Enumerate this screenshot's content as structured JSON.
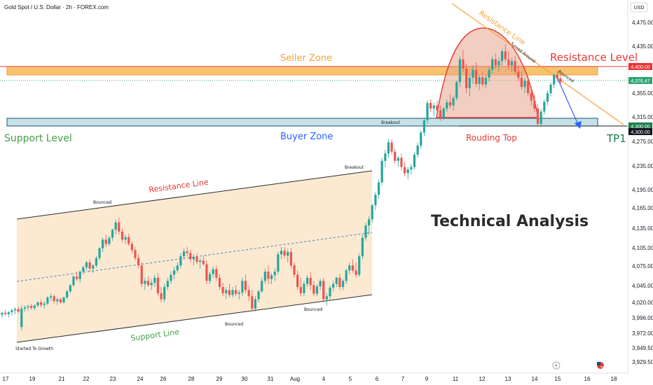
{
  "header": {
    "title": "Gold Spot / U.S. Dollar · 2h · FOREX.com",
    "currency_button": "USD"
  },
  "chart_data": {
    "type": "candlestick",
    "title": "Gold Spot / U.S. Dollar · 2h · FOREX.com",
    "y_ticks": [
      "4,475.00",
      "4,435.00",
      "4,355.00",
      "4,315.00",
      "4,275.00",
      "4,235.00",
      "4,195.00",
      "4,165.00",
      "4,135.00",
      "4,105.00",
      "4,075.00",
      "4,045.00",
      "4,020.00",
      "3,996.00",
      "3,972.00",
      "3,949.50",
      "3,929.50"
    ],
    "x_ticks": [
      "17",
      "19",
      "21",
      "22",
      "23",
      "24",
      "26",
      "28",
      "29",
      "30",
      "31",
      "Aug",
      "4",
      "5",
      "6",
      "7",
      "9",
      "11",
      "12",
      "13",
      "14",
      "15",
      "16",
      "18",
      "19"
    ],
    "price_labels": [
      {
        "text": "4,400.00",
        "color": "#ef3131"
      },
      {
        "text": "4,376.47",
        "color": "#2aa672"
      },
      {
        "text": "4,300.00",
        "color": "#1a7d4a"
      },
      {
        "text": "4,300.00",
        "color": "#131722"
      }
    ],
    "candles": [
      [
        4000,
        4005,
        3995,
        4003
      ],
      [
        4003,
        4008,
        3998,
        4001
      ],
      [
        4001,
        4006,
        3996,
        4004
      ],
      [
        4004,
        4010,
        3999,
        4007
      ],
      [
        4007,
        4012,
        4001,
        4009
      ],
      [
        4009,
        4013,
        4003,
        4005
      ],
      [
        3980,
        4015,
        3975,
        4010
      ],
      [
        4010,
        4015,
        4005,
        4012
      ],
      [
        4012,
        4016,
        4007,
        4014
      ],
      [
        4014,
        4018,
        4008,
        4011
      ],
      [
        4011,
        4017,
        4007,
        4015
      ],
      [
        4015,
        4022,
        4012,
        4020
      ],
      [
        4020,
        4025,
        4012,
        4016
      ],
      [
        4016,
        4022,
        4010,
        4018
      ],
      [
        4018,
        4030,
        4015,
        4028
      ],
      [
        4028,
        4035,
        4022,
        4030
      ],
      [
        4030,
        4033,
        4018,
        4022
      ],
      [
        4022,
        4028,
        4016,
        4025
      ],
      [
        4025,
        4028,
        4018,
        4020
      ],
      [
        4020,
        4030,
        4018,
        4028
      ],
      [
        4028,
        4040,
        4025,
        4038
      ],
      [
        4038,
        4050,
        4035,
        4048
      ],
      [
        4048,
        4065,
        4045,
        4062
      ],
      [
        4062,
        4070,
        4055,
        4058
      ],
      [
        4058,
        4072,
        4052,
        4070
      ],
      [
        4070,
        4080,
        4065,
        4077
      ],
      [
        4077,
        4088,
        4072,
        4085
      ],
      [
        4085,
        4090,
        4070,
        4075
      ],
      [
        4075,
        4082,
        4068,
        4080
      ],
      [
        4080,
        4095,
        4076,
        4092
      ],
      [
        4092,
        4110,
        4088,
        4108
      ],
      [
        4108,
        4125,
        4102,
        4122
      ],
      [
        4122,
        4130,
        4110,
        4115
      ],
      [
        4115,
        4128,
        4112,
        4125
      ],
      [
        4125,
        4140,
        4120,
        4138
      ],
      [
        4138,
        4155,
        4130,
        4150
      ],
      [
        4150,
        4158,
        4130,
        4135
      ],
      [
        4135,
        4140,
        4118,
        4122
      ],
      [
        4122,
        4130,
        4115,
        4126
      ],
      [
        4126,
        4132,
        4112,
        4115
      ],
      [
        4115,
        4120,
        4100,
        4105
      ],
      [
        4105,
        4110,
        4088,
        4092
      ],
      [
        4092,
        4098,
        4075,
        4080
      ],
      [
        4080,
        4085,
        4045,
        4050
      ],
      [
        4050,
        4060,
        4040,
        4055
      ],
      [
        4055,
        4062,
        4045,
        4048
      ],
      [
        4048,
        4058,
        4040,
        4052
      ],
      [
        4052,
        4065,
        4045,
        4060
      ],
      [
        4060,
        4068,
        4030,
        4035
      ],
      [
        4035,
        4045,
        4020,
        4025
      ],
      [
        4025,
        4050,
        4020,
        4045
      ],
      [
        4045,
        4060,
        4040,
        4055
      ],
      [
        4055,
        4070,
        4050,
        4065
      ],
      [
        4065,
        4078,
        4058,
        4072
      ],
      [
        4072,
        4085,
        4068,
        4080
      ],
      [
        4080,
        4100,
        4075,
        4095
      ],
      [
        4095,
        4108,
        4090,
        4103
      ],
      [
        4103,
        4110,
        4095,
        4100
      ],
      [
        4100,
        4106,
        4085,
        4090
      ],
      [
        4090,
        4098,
        4080,
        4094
      ],
      [
        4094,
        4100,
        4082,
        4086
      ],
      [
        4086,
        4092,
        4075,
        4088
      ],
      [
        4088,
        4095,
        4080,
        4082
      ],
      [
        4082,
        4088,
        4050,
        4055
      ],
      [
        4055,
        4070,
        4050,
        4066
      ],
      [
        4066,
        4078,
        4060,
        4074
      ],
      [
        4074,
        4080,
        4055,
        4060
      ],
      [
        4060,
        4066,
        4040,
        4045
      ],
      [
        4045,
        4052,
        4030,
        4035
      ],
      [
        4035,
        4045,
        4025,
        4040
      ],
      [
        4040,
        4050,
        4028,
        4032
      ],
      [
        4032,
        4045,
        4028,
        4040
      ],
      [
        4040,
        4048,
        4030,
        4034
      ],
      [
        4034,
        4040,
        4025,
        4036
      ],
      [
        4036,
        4060,
        4030,
        4055
      ],
      [
        4055,
        4065,
        4035,
        4040
      ],
      [
        4040,
        4048,
        4022,
        4030
      ],
      [
        4030,
        4040,
        4005,
        4010
      ],
      [
        4010,
        4030,
        4005,
        4025
      ],
      [
        4025,
        4040,
        4020,
        4038
      ],
      [
        4038,
        4060,
        4035,
        4055
      ],
      [
        4055,
        4075,
        4050,
        4070
      ],
      [
        4070,
        4080,
        4050,
        4058
      ],
      [
        4058,
        4068,
        4050,
        4064
      ],
      [
        4064,
        4075,
        4055,
        4070
      ],
      [
        4070,
        4102,
        4065,
        4098
      ],
      [
        4098,
        4110,
        4090,
        4104
      ],
      [
        4104,
        4110,
        4092,
        4096
      ],
      [
        4096,
        4106,
        4085,
        4102
      ],
      [
        4102,
        4108,
        4075,
        4080
      ],
      [
        4080,
        4085,
        4060,
        4065
      ],
      [
        4065,
        4072,
        4040,
        4045
      ],
      [
        4045,
        4060,
        4030,
        4035
      ],
      [
        4035,
        4055,
        4030,
        4050
      ],
      [
        4050,
        4065,
        4045,
        4060
      ],
      [
        4060,
        4070,
        4040,
        4048
      ],
      [
        4048,
        4055,
        4030,
        4034
      ],
      [
        4034,
        4050,
        4030,
        4046
      ],
      [
        4046,
        4058,
        4040,
        4055
      ],
      [
        4055,
        4060,
        4020,
        4025
      ],
      [
        4025,
        4035,
        4015,
        4030
      ],
      [
        4030,
        4048,
        4025,
        4044
      ],
      [
        4044,
        4055,
        4038,
        4050
      ],
      [
        4050,
        4062,
        4045,
        4060
      ],
      [
        4060,
        4066,
        4040,
        4045
      ],
      [
        4045,
        4058,
        4040,
        4055
      ],
      [
        4055,
        4075,
        4050,
        4072
      ],
      [
        4072,
        4085,
        4065,
        4080
      ],
      [
        4080,
        4090,
        4068,
        4072
      ],
      [
        4072,
        4085,
        4060,
        4065
      ],
      [
        4065,
        4100,
        4062,
        4095
      ],
      [
        4095,
        4130,
        4090,
        4125
      ],
      [
        4125,
        4150,
        4120,
        4145
      ],
      [
        4145,
        4160,
        4130,
        4155
      ],
      [
        4155,
        4180,
        4150,
        4178
      ],
      [
        4178,
        4200,
        4170,
        4195
      ],
      [
        4195,
        4220,
        4188,
        4215
      ],
      [
        4215,
        4255,
        4210,
        4250
      ],
      [
        4250,
        4268,
        4240,
        4262
      ],
      [
        4262,
        4285,
        4255,
        4280
      ],
      [
        4280,
        4285,
        4260,
        4265
      ],
      [
        4265,
        4270,
        4245,
        4250
      ],
      [
        4250,
        4258,
        4240,
        4255
      ],
      [
        4255,
        4262,
        4235,
        4240
      ],
      [
        4240,
        4248,
        4225,
        4230
      ],
      [
        4230,
        4240,
        4220,
        4236
      ],
      [
        4236,
        4245,
        4228,
        4240
      ],
      [
        4240,
        4265,
        4235,
        4260
      ],
      [
        4260,
        4280,
        4255,
        4275
      ],
      [
        4275,
        4300,
        4270,
        4296
      ],
      [
        4296,
        4320,
        4290,
        4316
      ],
      [
        4316,
        4348,
        4310,
        4344
      ],
      [
        4344,
        4350,
        4330,
        4335
      ],
      [
        4335,
        4345,
        4322,
        4340
      ],
      [
        4340,
        4348,
        4328,
        4332
      ],
      [
        4332,
        4340,
        4315,
        4320
      ],
      [
        4320,
        4338,
        4316,
        4335
      ],
      [
        4335,
        4350,
        4330,
        4345
      ],
      [
        4345,
        4358,
        4335,
        4340
      ],
      [
        4340,
        4356,
        4332,
        4352
      ],
      [
        4352,
        4380,
        4348,
        4378
      ],
      [
        4378,
        4420,
        4370,
        4415
      ],
      [
        4415,
        4430,
        4395,
        4400
      ],
      [
        4400,
        4408,
        4360,
        4368
      ],
      [
        4368,
        4390,
        4355,
        4385
      ],
      [
        4385,
        4405,
        4375,
        4398
      ],
      [
        4398,
        4410,
        4370,
        4375
      ],
      [
        4375,
        4390,
        4365,
        4386
      ],
      [
        4386,
        4395,
        4370,
        4374
      ],
      [
        4374,
        4390,
        4368,
        4385
      ],
      [
        4385,
        4402,
        4378,
        4398
      ],
      [
        4398,
        4420,
        4392,
        4415
      ],
      [
        4415,
        4425,
        4400,
        4405
      ],
      [
        4405,
        4418,
        4395,
        4412
      ],
      [
        4412,
        4432,
        4405,
        4428
      ],
      [
        4428,
        4440,
        4410,
        4415
      ],
      [
        4415,
        4428,
        4398,
        4405
      ],
      [
        4405,
        4418,
        4395,
        4412
      ],
      [
        4412,
        4420,
        4390,
        4395
      ],
      [
        4395,
        4405,
        4380,
        4385
      ],
      [
        4385,
        4395,
        4365,
        4370
      ],
      [
        4370,
        4385,
        4360,
        4380
      ],
      [
        4380,
        4388,
        4355,
        4360
      ],
      [
        4360,
        4370,
        4340,
        4348
      ],
      [
        4348,
        4358,
        4330,
        4335
      ],
      [
        4335,
        4342,
        4305,
        4310
      ],
      [
        4310,
        4335,
        4305,
        4330
      ],
      [
        4330,
        4350,
        4325,
        4346
      ],
      [
        4346,
        4365,
        4340,
        4360
      ],
      [
        4360,
        4378,
        4355,
        4374
      ],
      [
        4374,
        4392,
        4368,
        4390
      ],
      [
        4390,
        4396,
        4378,
        4384
      ],
      [
        4384,
        4390,
        4372,
        4378
      ]
    ]
  },
  "annotations": {
    "seller_zone": "Seller Zone",
    "buyer_zone": "Buyer Zone",
    "support_level": "Support Level",
    "resistance_level": "Resistance Level",
    "rounding_top": "Rouding Top",
    "tp1": "TP1",
    "technical_analysis": "Technical Analysis",
    "resistance_line_channel": "Resistance Line",
    "support_line_channel": "Support Line",
    "resistance_line_trend": "Resistance Line",
    "turned_around": "Turned Around",
    "bounced_right": "Bounced",
    "bounced_top": "Bounced",
    "bounced_bottom_1": "Bounced",
    "bounced_bottom_2": "Bounced",
    "breakout_1": "Breakout",
    "breakout_2": "Breakout",
    "started_to_growth": "Started To Growth"
  },
  "colors": {
    "up": "#26a69a",
    "down": "#ef5350",
    "seller_zone_fill": "#f7b955",
    "seller_zone_border": "#f39a2b",
    "buyer_zone_fill": "#b7dbe0",
    "buyer_zone_border": "#1f4f7a",
    "channel_fill": "#f8dcb8",
    "red_line": "#e53935",
    "blue_text": "#2962ff",
    "green_text": "#43a047",
    "orange_text": "#f4a23a",
    "resistance_text": "#e53935",
    "trend_line": "#f7a23a",
    "arrow": "#2962ff"
  }
}
